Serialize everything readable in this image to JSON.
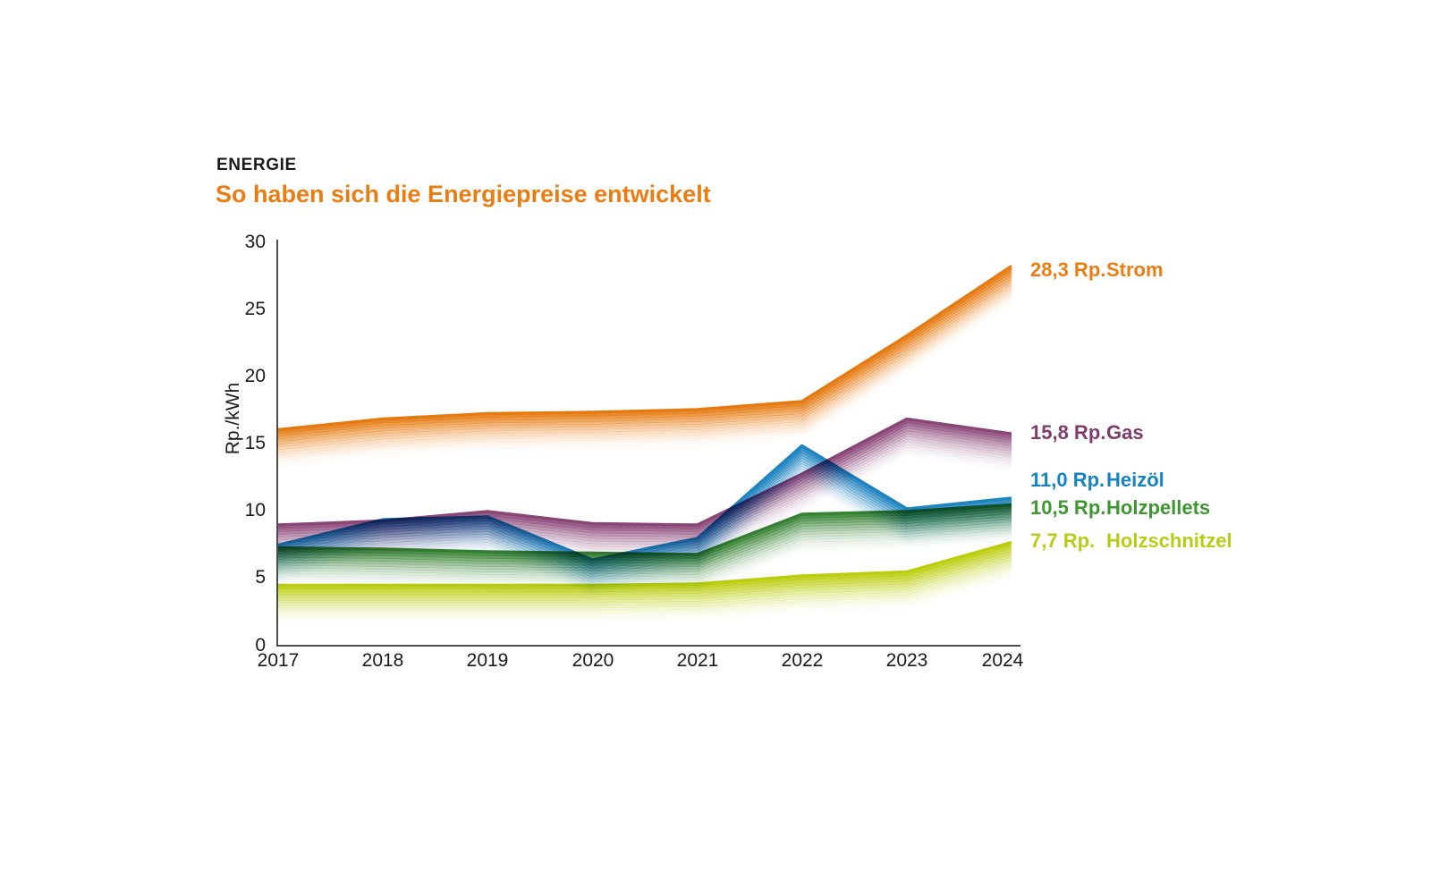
{
  "header": {
    "kicker": "ENERGIE",
    "title": "So haben sich die Energiepreise entwickelt"
  },
  "chart_data": {
    "type": "line",
    "title": "So haben sich die Energiepreise entwickelt",
    "xlabel": "",
    "ylabel": "Rp./kWh",
    "ylim": [
      0,
      30
    ],
    "grid": false,
    "legend_position": "right-end-labels",
    "y_tick_labels": [
      "30",
      "25",
      "20",
      "15",
      "10",
      "5",
      "0"
    ],
    "categories": [
      "2017",
      "2018",
      "2019",
      "2020",
      "2021",
      "2022",
      "2023",
      "2024"
    ],
    "series": [
      {
        "name": "Strom",
        "color": "#e57a10",
        "values": [
          16.1,
          16.9,
          17.3,
          17.4,
          17.6,
          18.2,
          23.1,
          28.3
        ]
      },
      {
        "name": "Gas",
        "color": "#8a4577",
        "values": [
          9.0,
          9.3,
          10.0,
          9.1,
          9.0,
          12.8,
          16.9,
          15.8
        ]
      },
      {
        "name": "Heizöl",
        "color": "#1e84c0",
        "values": [
          7.5,
          9.4,
          9.6,
          6.4,
          8.0,
          14.9,
          10.2,
          11.0
        ]
      },
      {
        "name": "Holzpellets",
        "color": "#358231",
        "values": [
          7.3,
          7.2,
          7.0,
          6.9,
          6.8,
          9.8,
          10.0,
          10.5
        ]
      },
      {
        "name": "Holzschnitzel",
        "color": "#bccd0e",
        "values": [
          4.5,
          4.5,
          4.5,
          4.5,
          4.6,
          5.2,
          5.5,
          7.7
        ]
      }
    ]
  },
  "legend": {
    "items": [
      {
        "value": "28,3 Rp.",
        "label": "Strom",
        "color": "#e87d13"
      },
      {
        "value": "15,8 Rp.",
        "label": "Gas",
        "color": "#7e3c6d"
      },
      {
        "value": "11,0 Rp.",
        "label": "Heizöl",
        "color": "#1583bf"
      },
      {
        "value": "10,5 Rp.",
        "label": "Holzpellets",
        "color": "#3e9630"
      },
      {
        "value": "7,7 Rp.",
        "label": "Holzschnitzel",
        "color": "#b8cc17"
      }
    ]
  }
}
